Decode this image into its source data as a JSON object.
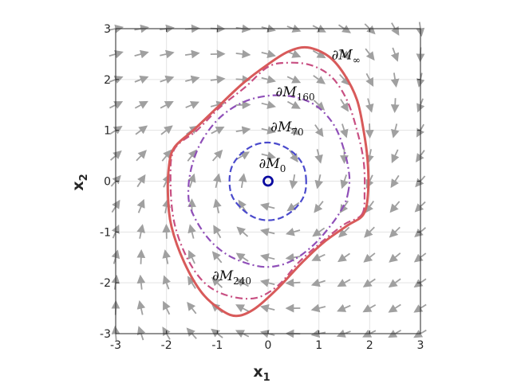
{
  "chart_data": {
    "type": "contour",
    "xlim": [
      -3,
      3
    ],
    "ylim": [
      -3,
      3
    ],
    "xticks": [
      -3,
      -2,
      -1,
      0,
      1,
      2,
      3
    ],
    "yticks": [
      -3,
      -2,
      -1,
      0,
      1,
      2,
      3
    ],
    "xtick_labels": [
      "-3",
      "-2",
      "-1",
      "0",
      "1",
      "2",
      "3"
    ],
    "ytick_labels": [
      "-3",
      "-2",
      "-1",
      "0",
      "1",
      "2",
      "3"
    ],
    "xlabel": {
      "base": "x",
      "sub": "1"
    },
    "ylabel": {
      "base": "x",
      "sub": "2"
    },
    "grid": true,
    "equilibrium": {
      "x": 0,
      "y": 0,
      "color": "#0a0aa0"
    },
    "vector_field": {
      "x_range": [
        -3,
        3
      ],
      "y_range": [
        -3,
        3
      ],
      "step": 0.5,
      "color": "#a0a0a0"
    },
    "curves": [
      {
        "key": "m0",
        "color": "#4a4acc",
        "style": "dashed",
        "width": 2.2,
        "points": [
          [
            0.75,
            0
          ],
          [
            0.7,
            0.29
          ],
          [
            0.53,
            0.53
          ],
          [
            0.27,
            0.7
          ],
          [
            0,
            0.76
          ],
          [
            -0.27,
            0.71
          ],
          [
            -0.53,
            0.54
          ],
          [
            -0.71,
            0.29
          ],
          [
            -0.76,
            0
          ],
          [
            -0.71,
            -0.29
          ],
          [
            -0.53,
            -0.53
          ],
          [
            -0.28,
            -0.71
          ],
          [
            0,
            -0.77
          ],
          [
            0.28,
            -0.71
          ],
          [
            0.54,
            -0.53
          ],
          [
            0.71,
            -0.28
          ]
        ]
      },
      {
        "key": "m70",
        "color": "#8f4fb8",
        "style": "dashdot",
        "width": 2.2,
        "points": [
          [
            1.57,
            -0.25
          ],
          [
            1.6,
            0.1
          ],
          [
            1.5,
            0.6
          ],
          [
            1.3,
            1.1
          ],
          [
            0.95,
            1.48
          ],
          [
            0.5,
            1.66
          ],
          [
            0,
            1.68
          ],
          [
            -0.5,
            1.55
          ],
          [
            -0.95,
            1.25
          ],
          [
            -1.3,
            0.8
          ],
          [
            -1.5,
            0.3
          ],
          [
            -1.57,
            -0.2
          ],
          [
            -1.5,
            -0.6
          ],
          [
            -1.2,
            -1.1
          ],
          [
            -0.8,
            -1.45
          ],
          [
            -0.3,
            -1.65
          ],
          [
            0.1,
            -1.68
          ],
          [
            0.5,
            -1.55
          ],
          [
            0.9,
            -1.25
          ],
          [
            1.25,
            -0.85
          ],
          [
            1.48,
            -0.5
          ]
        ]
      },
      {
        "key": "m160",
        "color": "#c84f82",
        "style": "dashdot",
        "width": 2.2,
        "points": [
          [
            1.85,
            -0.65
          ],
          [
            1.9,
            -0.2
          ],
          [
            1.88,
            0.4
          ],
          [
            1.75,
            1.0
          ],
          [
            1.55,
            1.6
          ],
          [
            1.25,
            2.05
          ],
          [
            0.85,
            2.28
          ],
          [
            0.4,
            2.33
          ],
          [
            0,
            2.25
          ],
          [
            -0.45,
            1.85
          ],
          [
            -0.95,
            1.45
          ],
          [
            -1.4,
            1.0
          ],
          [
            -1.85,
            0.62
          ],
          [
            -1.92,
            0.0
          ],
          [
            -1.85,
            -0.8
          ],
          [
            -1.6,
            -1.5
          ],
          [
            -1.25,
            -2.0
          ],
          [
            -0.8,
            -2.25
          ],
          [
            -0.25,
            -2.3
          ],
          [
            0.2,
            -2.05
          ],
          [
            0.6,
            -1.6
          ],
          [
            1.05,
            -1.2
          ],
          [
            1.5,
            -0.85
          ]
        ]
      },
      {
        "key": "minf",
        "color": "#d85a5a",
        "style": "solid",
        "width": 3,
        "points": [
          [
            1.88,
            -0.65
          ],
          [
            1.97,
            -0.2
          ],
          [
            1.96,
            0.4
          ],
          [
            1.88,
            1.0
          ],
          [
            1.75,
            1.6
          ],
          [
            1.5,
            2.1
          ],
          [
            1.2,
            2.45
          ],
          [
            0.78,
            2.63
          ],
          [
            0.4,
            2.55
          ],
          [
            0,
            2.3
          ],
          [
            -0.5,
            1.92
          ],
          [
            -1.0,
            1.45
          ],
          [
            -1.45,
            1.02
          ],
          [
            -1.84,
            0.67
          ],
          [
            -1.95,
            0.3
          ],
          [
            -1.97,
            -0.3
          ],
          [
            -1.9,
            -0.9
          ],
          [
            -1.65,
            -1.6
          ],
          [
            -1.3,
            -2.2
          ],
          [
            -0.9,
            -2.55
          ],
          [
            -0.6,
            -2.65
          ],
          [
            -0.25,
            -2.5
          ],
          [
            0.2,
            -2.1
          ],
          [
            0.65,
            -1.62
          ],
          [
            1.1,
            -1.2
          ],
          [
            1.55,
            -0.88
          ]
        ]
      }
    ],
    "annotations": [
      {
        "curve": "minf",
        "base": "∂M",
        "sub": "∞",
        "x": 1.25,
        "y": 2.4
      },
      {
        "curve": "m160",
        "base": "∂M",
        "sub": "160",
        "x": 0.15,
        "y": 1.67
      },
      {
        "curve": "m70",
        "base": "∂M",
        "sub": "70",
        "x": 0.05,
        "y": 0.98
      },
      {
        "curve": "m0",
        "base": "∂M",
        "sub": "0",
        "x": -0.18,
        "y": 0.26
      },
      {
        "curve": "m240",
        "base": "∂M",
        "sub": "240",
        "x": -1.1,
        "y": -1.95
      }
    ]
  }
}
